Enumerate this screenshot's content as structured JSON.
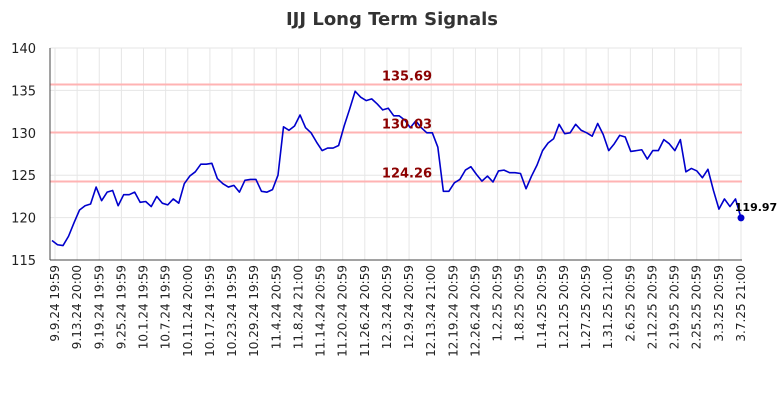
{
  "chart_data": {
    "type": "line",
    "title": "IJJ Long Term Signals",
    "xlabel": "",
    "ylabel": "",
    "ylim": [
      115,
      140
    ],
    "y_ticks": [
      115,
      120,
      125,
      130,
      135,
      140
    ],
    "x_tick_labels": [
      "9.9.24 19:59",
      "9.13.24 20:00",
      "9.19.24 19:59",
      "9.25.24 19:59",
      "10.1.24 19:59",
      "10.7.24 19:59",
      "10.11.24 20:00",
      "10.17.24 19:59",
      "10.23.24 19:59",
      "10.29.24 19:59",
      "11.4.24 20:59",
      "11.8.24 21:00",
      "11.14.24 20:59",
      "11.20.24 20:59",
      "11.26.24 20:59",
      "12.3.24 20:59",
      "12.9.24 20:59",
      "12.13.24 21:00",
      "12.19.24 20:59",
      "12.26.24 20:59",
      "1.2.25 20:59",
      "1.8.25 20:59",
      "1.14.25 20:59",
      "1.21.25 20:59",
      "1.27.25 20:59",
      "1.31.25 21:00",
      "2.6.25 20:59",
      "2.12.25 20:59",
      "2.19.25 20:59",
      "2.25.25 20:59",
      "3.3.25 20:59",
      "3.7.25 21:00"
    ],
    "grid": true,
    "line_color": "#0000cc",
    "level_line_color": "#ffb3b3",
    "level_label_color": "#8b0000",
    "levels": [
      {
        "value": 135.69,
        "label": "135.69"
      },
      {
        "value": 130.03,
        "label": "130.03"
      },
      {
        "value": 124.26,
        "label": "124.26"
      }
    ],
    "last_point": {
      "value": 119.97,
      "label": "119.97"
    },
    "series": [
      {
        "values": [
          117.3,
          116.8,
          116.7,
          117.8,
          119.4,
          120.9,
          121.4,
          121.6,
          123.6,
          122.0,
          123.0,
          123.2,
          121.4,
          122.7,
          122.7,
          123.0,
          121.8,
          121.9,
          121.3,
          122.5,
          121.7,
          121.5,
          122.2,
          121.7,
          124.0,
          124.9,
          125.4,
          126.3,
          126.3,
          126.4,
          124.6,
          124.0,
          123.6,
          123.8,
          123.0,
          124.4,
          124.5,
          124.5,
          123.1,
          123.0,
          123.3,
          125.0,
          130.7,
          130.3,
          130.8,
          132.1,
          130.6,
          130.0,
          128.9,
          127.9,
          128.2,
          128.2,
          128.5,
          130.8,
          132.8,
          134.9,
          134.2,
          133.8,
          134.0,
          133.4,
          132.7,
          132.9,
          132.0,
          132.0,
          131.5,
          130.6,
          131.4,
          130.6,
          130.0,
          130.0,
          128.3,
          123.1,
          123.1,
          124.1,
          124.5,
          125.6,
          126.0,
          125.1,
          124.3,
          124.9,
          124.2,
          125.5,
          125.6,
          125.3,
          125.3,
          125.2,
          123.4,
          124.9,
          126.2,
          127.9,
          128.8,
          129.3,
          131.0,
          129.9,
          130.0,
          131.0,
          130.3,
          130.0,
          129.6,
          131.1,
          129.8,
          127.9,
          128.7,
          129.7,
          129.5,
          127.8,
          127.9,
          128.0,
          126.9,
          127.9,
          127.9,
          129.2,
          128.7,
          127.9,
          129.2,
          125.4,
          125.8,
          125.5,
          124.7,
          125.7,
          123.2,
          121.0,
          122.2,
          121.3,
          122.2,
          119.97
        ]
      }
    ]
  }
}
